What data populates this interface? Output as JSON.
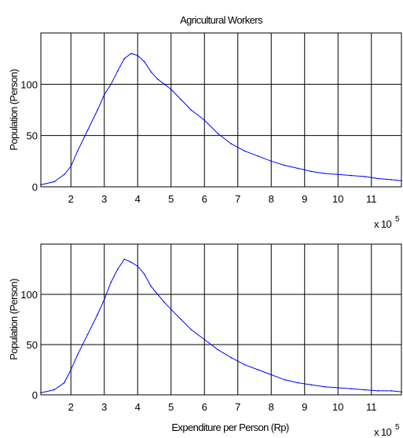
{
  "chart_data": [
    {
      "type": "line",
      "title": "Agricultural Workers",
      "xlabel": "",
      "ylabel": "Population (Person)",
      "x_multiplier_label": "x 10",
      "x_multiplier_exp": "5",
      "xlim": [
        1.1,
        11.9
      ],
      "ylim": [
        0,
        150
      ],
      "xticks": [
        "2",
        "3",
        "4",
        "5",
        "6",
        "7",
        "8",
        "9",
        "10",
        "11"
      ],
      "yticks": [
        "0",
        "50",
        "100"
      ],
      "grid": true,
      "color": "#0000ff",
      "series": [
        {
          "x": [
            1.1,
            1.5,
            1.8,
            2.0,
            2.2,
            2.5,
            2.8,
            3.0,
            3.2,
            3.4,
            3.6,
            3.8,
            4.0,
            4.2,
            4.4,
            4.6,
            4.8,
            5.0,
            5.3,
            5.6,
            6.0,
            6.4,
            6.8,
            7.2,
            7.6,
            8.0,
            8.4,
            8.8,
            9.2,
            9.6,
            10.0,
            10.4,
            10.8,
            11.2,
            11.6,
            11.9
          ],
          "values": [
            2,
            5,
            12,
            20,
            35,
            55,
            75,
            90,
            100,
            113,
            125,
            130,
            128,
            122,
            112,
            105,
            100,
            95,
            85,
            75,
            65,
            52,
            42,
            35,
            30,
            25,
            21,
            18,
            15,
            13,
            12,
            11,
            10,
            8,
            7,
            6
          ]
        }
      ]
    },
    {
      "type": "line",
      "title": "",
      "xlabel": "Expenditure per Person (Rp)",
      "ylabel": "Population (Person)",
      "x_multiplier_label": "x 10",
      "x_multiplier_exp": "5",
      "xlim": [
        1.1,
        11.9
      ],
      "ylim": [
        0,
        150
      ],
      "xticks": [
        "2",
        "3",
        "4",
        "5",
        "6",
        "7",
        "8",
        "9",
        "10",
        "11"
      ],
      "yticks": [
        "0",
        "50",
        "100"
      ],
      "grid": true,
      "color": "#0000ff",
      "series": [
        {
          "x": [
            1.1,
            1.5,
            1.8,
            2.0,
            2.2,
            2.5,
            2.8,
            3.0,
            3.2,
            3.4,
            3.6,
            3.8,
            4.0,
            4.2,
            4.4,
            4.6,
            4.8,
            5.0,
            5.3,
            5.6,
            6.0,
            6.4,
            6.8,
            7.2,
            7.6,
            8.0,
            8.4,
            8.8,
            9.2,
            9.6,
            10.0,
            10.4,
            10.8,
            11.2,
            11.6,
            11.9
          ],
          "values": [
            2,
            5,
            12,
            25,
            40,
            60,
            80,
            95,
            112,
            125,
            135,
            132,
            128,
            120,
            108,
            100,
            92,
            85,
            75,
            65,
            55,
            45,
            37,
            30,
            25,
            20,
            15,
            12,
            10,
            8,
            7,
            6,
            5,
            4,
            4,
            3
          ]
        }
      ]
    }
  ]
}
